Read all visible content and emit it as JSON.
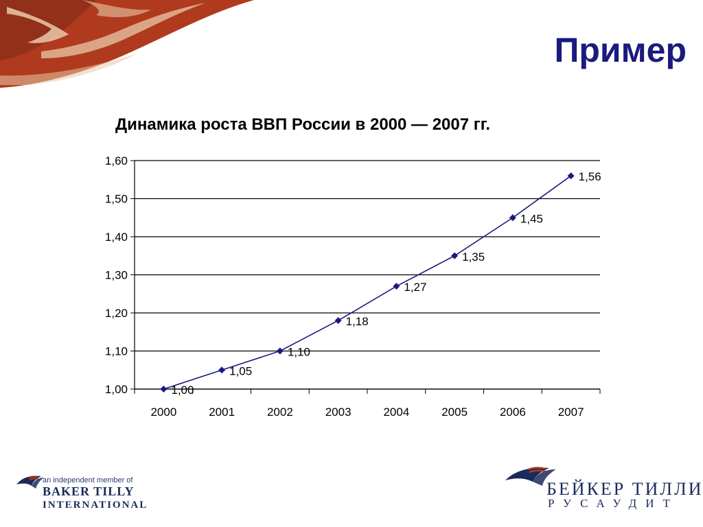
{
  "slide": {
    "title": "Пример"
  },
  "chart_data": {
    "type": "line",
    "title": "Динамика роста ВВП России в 2000 — 2007 гг.",
    "xlabel": "",
    "ylabel": "",
    "categories": [
      "2000",
      "2001",
      "2002",
      "2003",
      "2004",
      "2005",
      "2006",
      "2007"
    ],
    "series": [
      {
        "values": [
          1.0,
          1.05,
          1.1,
          1.18,
          1.27,
          1.35,
          1.45,
          1.56
        ],
        "labels": [
          "1,00",
          "1,05",
          "1,10",
          "1,18",
          "1,27",
          "1,35",
          "1,45",
          "1,56"
        ],
        "color": "#1a1a80",
        "marker": "diamond"
      }
    ],
    "ylim": [
      1.0,
      1.6
    ],
    "yticks": [
      "1,00",
      "1,10",
      "1,20",
      "1,30",
      "1,40",
      "1,50",
      "1,60"
    ],
    "grid": true,
    "legend": "none"
  },
  "logos": {
    "left": {
      "tagline": "an independent member of",
      "name": "BAKER TILLY",
      "subname": "INTERNATIONAL"
    },
    "right": {
      "name": "БЕЙКЕР ТИЛЛИ",
      "subname": "РУСАУДИТ"
    }
  },
  "colors": {
    "title": "#1a1a80",
    "corner_art_dark": "#b03a1e",
    "corner_art_light": "#e9c9a8",
    "logo": "#1b2a5a"
  }
}
